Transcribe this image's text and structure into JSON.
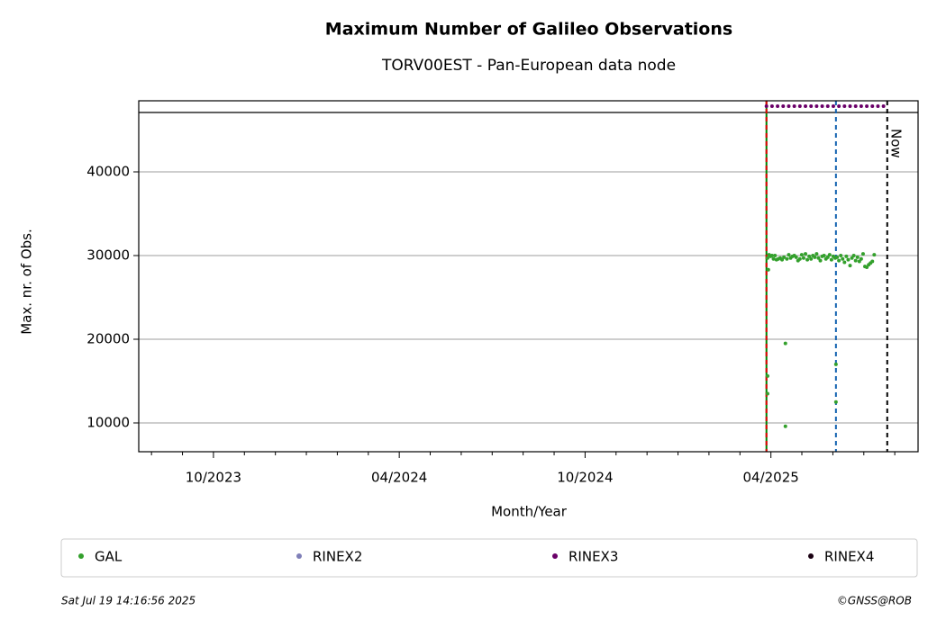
{
  "chart_data": {
    "type": "scatter",
    "title": "Maximum Number of Galileo Observations",
    "subtitle": "TORV00EST - Pan-European data node",
    "x_label": "Month/Year",
    "y_label": "Max. nr. of Obs.",
    "xlim": [
      2023.549,
      2025.646
    ],
    "ylim": [
      6559,
      48495
    ],
    "xticks": [
      {
        "value": 2023.75,
        "label": "10/2023"
      },
      {
        "value": 2024.25,
        "label": "04/2024"
      },
      {
        "value": 2024.75,
        "label": "10/2024"
      },
      {
        "value": 2025.25,
        "label": "04/2025"
      }
    ],
    "xminorticks": [
      2023.5833,
      2023.6667,
      2023.8333,
      2023.9167,
      2024.0,
      2024.0833,
      2024.1667,
      2024.3333,
      2024.4167,
      2024.5,
      2024.5833,
      2024.6667,
      2024.8333,
      2024.9167,
      2025.0,
      2025.0833,
      2025.1667,
      2025.3333,
      2025.4167,
      2025.5,
      2025.5833
    ],
    "yticks": [
      10000,
      20000,
      30000,
      40000
    ],
    "grid": true,
    "hlines": [
      {
        "value": 47097,
        "color": "#000000"
      }
    ],
    "vlines": [
      {
        "value": 2025.238,
        "color": "#008000",
        "dash": false
      },
      {
        "value": 2025.238,
        "color": "#e00000",
        "dash": true
      },
      {
        "value": 2025.425,
        "color": "#1060b0",
        "dash": true
      },
      {
        "value": 2025.563,
        "color": "#000000",
        "dash": true,
        "label": "Now"
      }
    ],
    "series": [
      {
        "name": "GAL",
        "color": "#33a02c",
        "x": [
          2025.241,
          2025.241,
          2025.241,
          2025.243,
          2025.245,
          2025.249,
          2025.253,
          2025.257,
          2025.261,
          2025.265,
          2025.27,
          2025.275,
          2025.28,
          2025.285,
          2025.289,
          2025.289,
          2025.293,
          2025.298,
          2025.303,
          2025.308,
          2025.313,
          2025.318,
          2025.323,
          2025.328,
          2025.333,
          2025.338,
          2025.343,
          2025.348,
          2025.353,
          2025.358,
          2025.363,
          2025.368,
          2025.373,
          2025.378,
          2025.383,
          2025.388,
          2025.393,
          2025.398,
          2025.403,
          2025.408,
          2025.413,
          2025.418,
          2025.423,
          2025.425,
          2025.425,
          2025.428,
          2025.433,
          2025.438,
          2025.443,
          2025.448,
          2025.453,
          2025.458,
          2025.463,
          2025.468,
          2025.473,
          2025.478,
          2025.483,
          2025.488,
          2025.493,
          2025.498,
          2025.503,
          2025.508,
          2025.513,
          2025.518,
          2025.523,
          2025.528
        ],
        "values": [
          29700,
          15600,
          13500,
          28300,
          30100,
          29900,
          30000,
          29600,
          30000,
          29500,
          29600,
          29700,
          29500,
          29800,
          19500,
          9600,
          29600,
          30100,
          29700,
          29900,
          30000,
          29800,
          29400,
          29600,
          30100,
          29700,
          30200,
          29500,
          29900,
          29600,
          30000,
          29800,
          30200,
          29700,
          29400,
          29900,
          30000,
          29600,
          29800,
          30100,
          29500,
          29900,
          29700,
          17000,
          12500,
          29800,
          29400,
          30000,
          29600,
          29200,
          29900,
          29500,
          28800,
          29700,
          30000,
          29400,
          29800,
          29300,
          29600,
          30200,
          28700,
          28600,
          28900,
          29100,
          29300,
          30100
        ]
      },
      {
        "name": "RINEX2",
        "color": "#7f7fb8",
        "x": [],
        "values": []
      },
      {
        "name": "RINEX3",
        "color": "#6a0068",
        "x": [
          2025.238,
          2025.253,
          2025.268,
          2025.283,
          2025.298,
          2025.313,
          2025.328,
          2025.343,
          2025.358,
          2025.373,
          2025.388,
          2025.403,
          2025.418,
          2025.433,
          2025.448,
          2025.463,
          2025.478,
          2025.493,
          2025.508,
          2025.523,
          2025.538,
          2025.553
        ],
        "values": [
          47850,
          47850,
          47850,
          47850,
          47850,
          47850,
          47850,
          47850,
          47850,
          47850,
          47850,
          47850,
          47850,
          47850,
          47850,
          47850,
          47850,
          47850,
          47850,
          47850,
          47850,
          47850
        ]
      },
      {
        "name": "RINEX4",
        "color": "#1a0012",
        "x": [],
        "values": []
      }
    ],
    "footer_left": "Sat Jul 19 14:16:56 2025",
    "footer_right": "©GNSS@ROB"
  }
}
